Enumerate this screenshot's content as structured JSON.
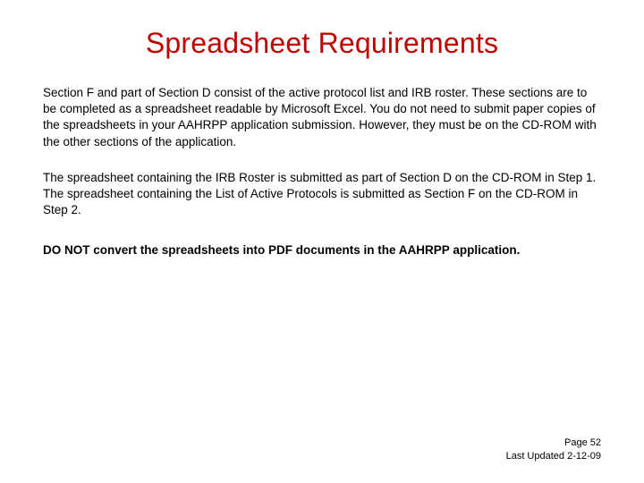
{
  "slide": {
    "title": "Spreadsheet Requirements",
    "paragraph1": "Section F and part of Section D consist of the active protocol list and IRB roster.  These sections are to be completed as a spreadsheet readable by Microsoft Excel.  You do not need to submit paper copies of the spreadsheets in your AAHRPP application submission.  However, they must be on the CD-ROM with the other sections of the application.",
    "paragraph2": "The spreadsheet containing the IRB Roster is submitted as part of Section D on the CD-ROM in Step 1.  The spreadsheet containing the List of Active Protocols is submitted as Section F on the CD-ROM in Step 2.",
    "warning": "DO NOT convert the spreadsheets into PDF documents in the AAHRPP application.",
    "footer_page": "Page 52",
    "footer_date": "Last Updated 2-12-09"
  },
  "colors": {
    "title_color": "#c00000",
    "body_color": "#000000",
    "background": "#ffffff"
  },
  "typography": {
    "title_fontsize": 32,
    "body_fontsize": 13.5,
    "footer_fontsize": 11,
    "font_family": "Arial"
  }
}
